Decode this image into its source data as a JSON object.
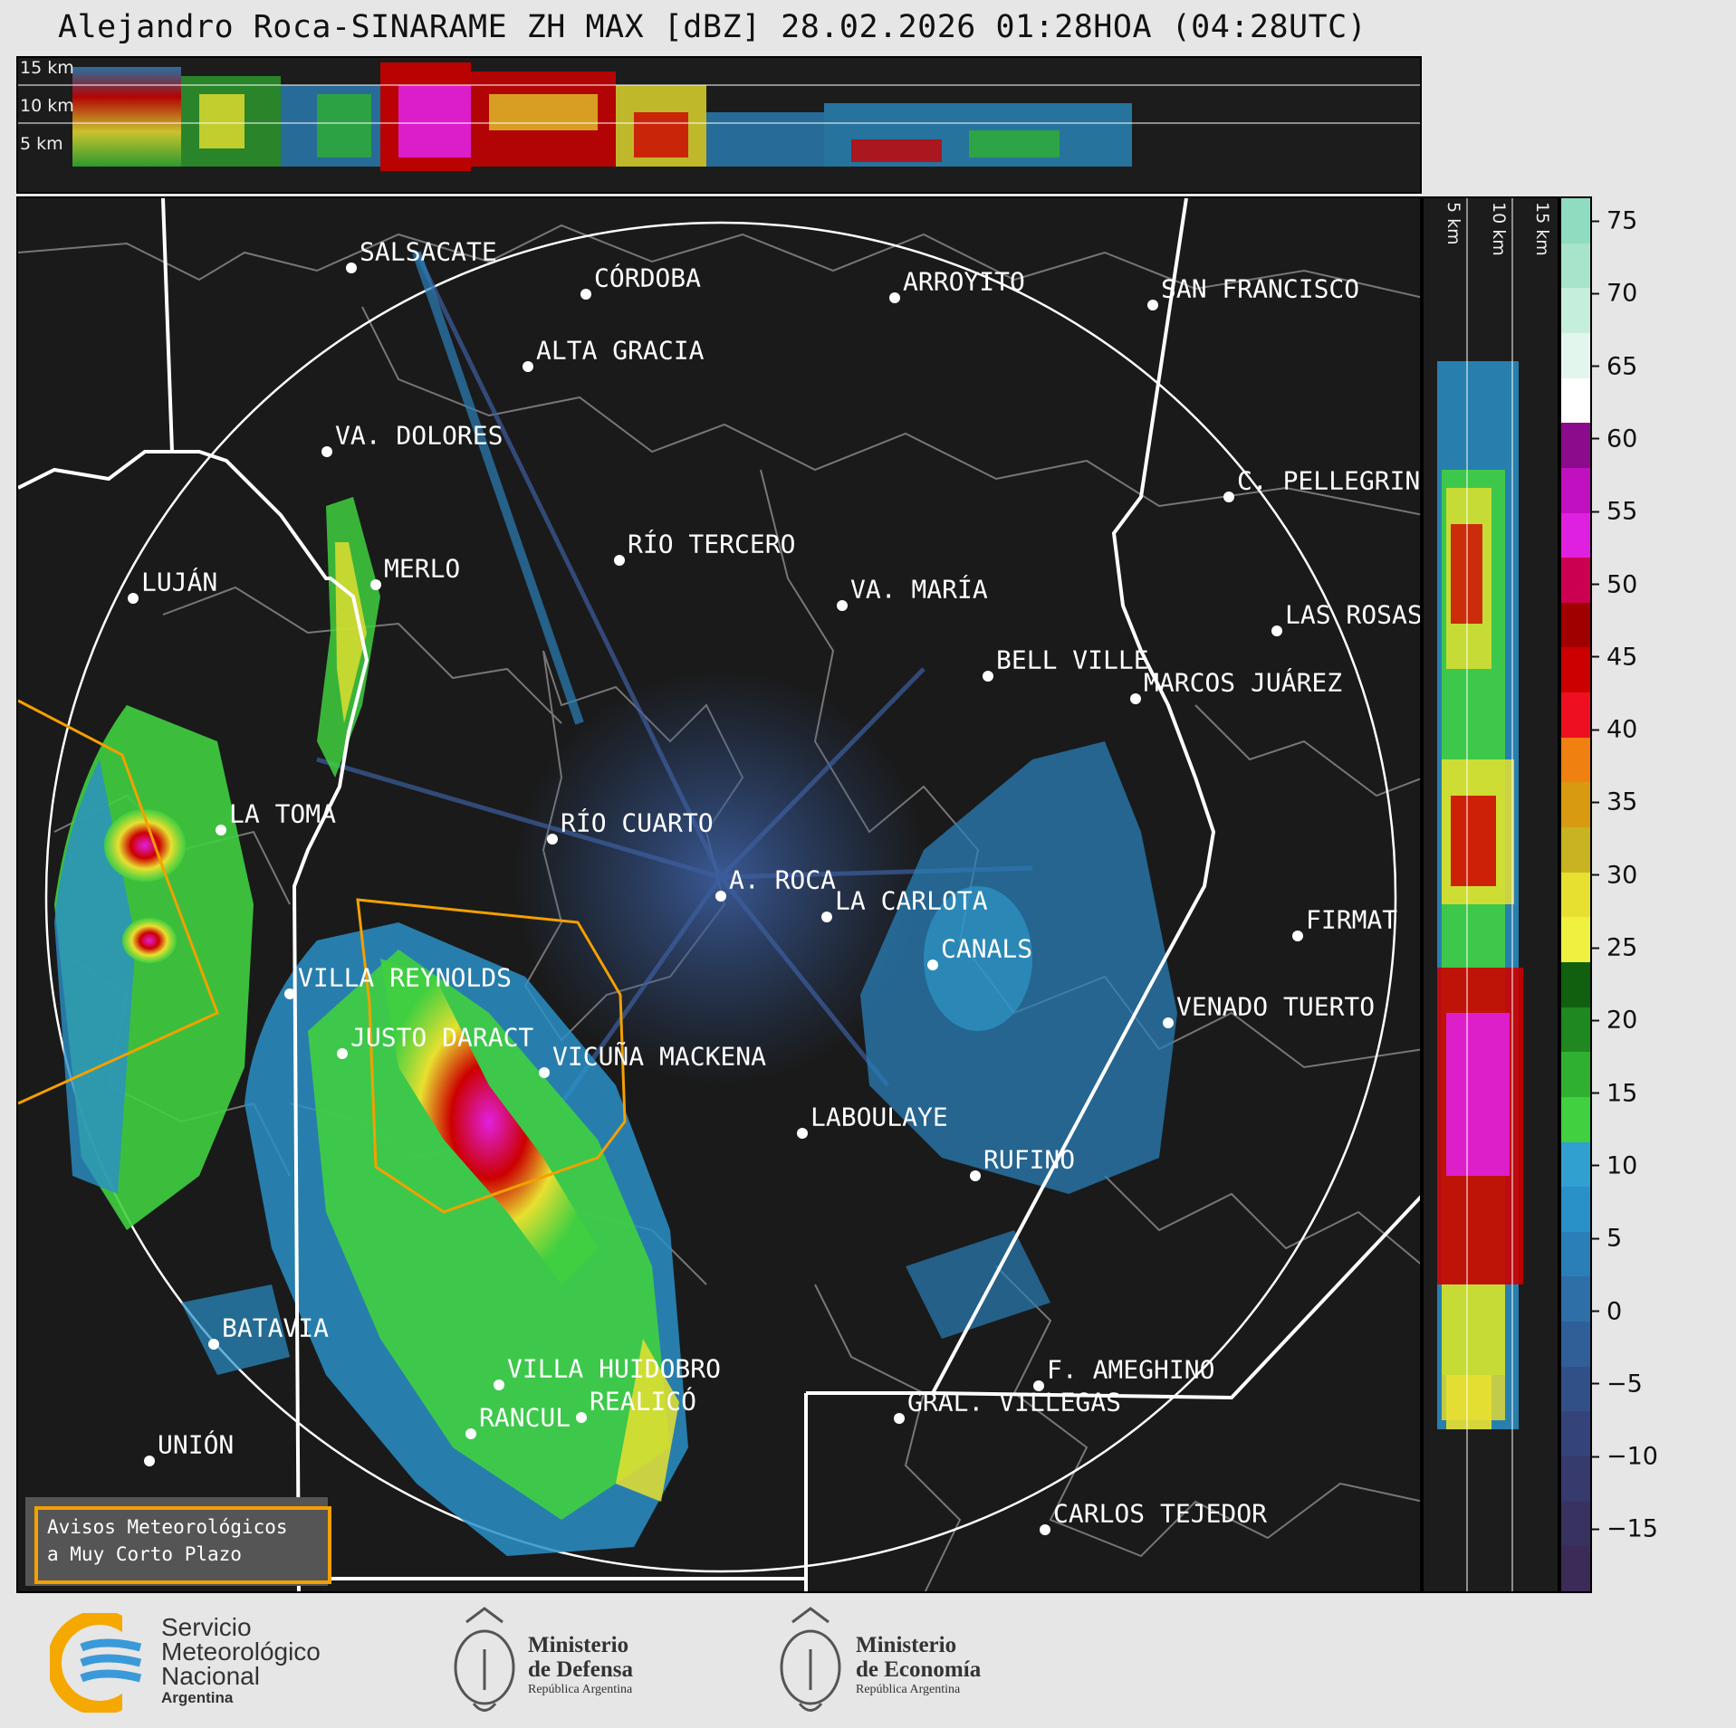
{
  "title": "Alejandro Roca-SINARAME ZH MAX [dBZ] 28.02.2026 01:28HOA (04:28UTC)",
  "top_strip": {
    "labels": [
      "15 km",
      "10 km",
      "5 km"
    ]
  },
  "side_strip": {
    "labels": [
      "5 km",
      "10 km",
      "15 km"
    ]
  },
  "colorbar": {
    "unit": "dBZ",
    "ticks": [
      "75",
      "70",
      "65",
      "60",
      "55",
      "50",
      "45",
      "40",
      "35",
      "30",
      "25",
      "20",
      "15",
      "10",
      "5",
      "0",
      "−5",
      "−10",
      "−15"
    ],
    "colors_top_to_bottom": [
      "#8fdcc0",
      "#a8e4cc",
      "#c6eedd",
      "#e2f6ee",
      "#ffffff",
      "#8c0a8c",
      "#c010c0",
      "#e020e0",
      "#cc0050",
      "#a00000",
      "#cc0000",
      "#ee1020",
      "#f08010",
      "#d89a10",
      "#c8b420",
      "#e8e030",
      "#f0f040",
      "#106010",
      "#208820",
      "#30b030",
      "#40d040",
      "#30a0d0",
      "#2a90c8",
      "#2a7fb8",
      "#2e6fa8",
      "#305f98",
      "#325088",
      "#34447a",
      "#363a6c",
      "#383260",
      "#3a2c56"
    ]
  },
  "map": {
    "radar_site": "A. ROCA",
    "cities": [
      {
        "name": "SALSACATE"
      },
      {
        "name": "CÓRDOBA"
      },
      {
        "name": "ARROYITO"
      },
      {
        "name": "SAN FRANCISCO"
      },
      {
        "name": "ALTA GRACIA"
      },
      {
        "name": "VA. DOLORES"
      },
      {
        "name": "C. PELLEGRINI"
      },
      {
        "name": "RÍO TERCERO"
      },
      {
        "name": "MERLO"
      },
      {
        "name": "LUJÁN"
      },
      {
        "name": "VA. MARÍA"
      },
      {
        "name": "LAS ROSAS"
      },
      {
        "name": "BELL VILLE"
      },
      {
        "name": "MARCOS JUÁREZ"
      },
      {
        "name": "LA TOMA"
      },
      {
        "name": "RÍO CUARTO"
      },
      {
        "name": "A. ROCA"
      },
      {
        "name": "LA CARLOTA"
      },
      {
        "name": "FIRMAT"
      },
      {
        "name": "CANALS"
      },
      {
        "name": "VILLA REYNOLDS"
      },
      {
        "name": "VENADO TUERTO"
      },
      {
        "name": "JUSTO DARACT"
      },
      {
        "name": "VICUÑA MACKENA"
      },
      {
        "name": "LABOULAYE"
      },
      {
        "name": "RUFINO"
      },
      {
        "name": "BATAVIA"
      },
      {
        "name": "VILLA HUIDOBRO"
      },
      {
        "name": "F. AMEGHINO"
      },
      {
        "name": "RANCUL"
      },
      {
        "name": "REALICÓ"
      },
      {
        "name": "GRAL. VILLEGAS"
      },
      {
        "name": "UNIÓN"
      },
      {
        "name": "CARLOS TEJEDOR"
      }
    ]
  },
  "warning_box": {
    "line1": "Avisos Meteorológicos",
    "line2": "a Muy Corto Plazo",
    "border_color": "#f4a000"
  },
  "logos": {
    "smn": {
      "line1": "Servicio",
      "line2": "Meteorológico",
      "line3": "Nacional",
      "line4": "Argentina"
    },
    "defensa": {
      "line1": "Ministerio",
      "line2": "de Defensa",
      "line3": "República Argentina"
    },
    "economia": {
      "line1": "Ministerio",
      "line2": "de Economía",
      "line3": "República Argentina"
    }
  }
}
